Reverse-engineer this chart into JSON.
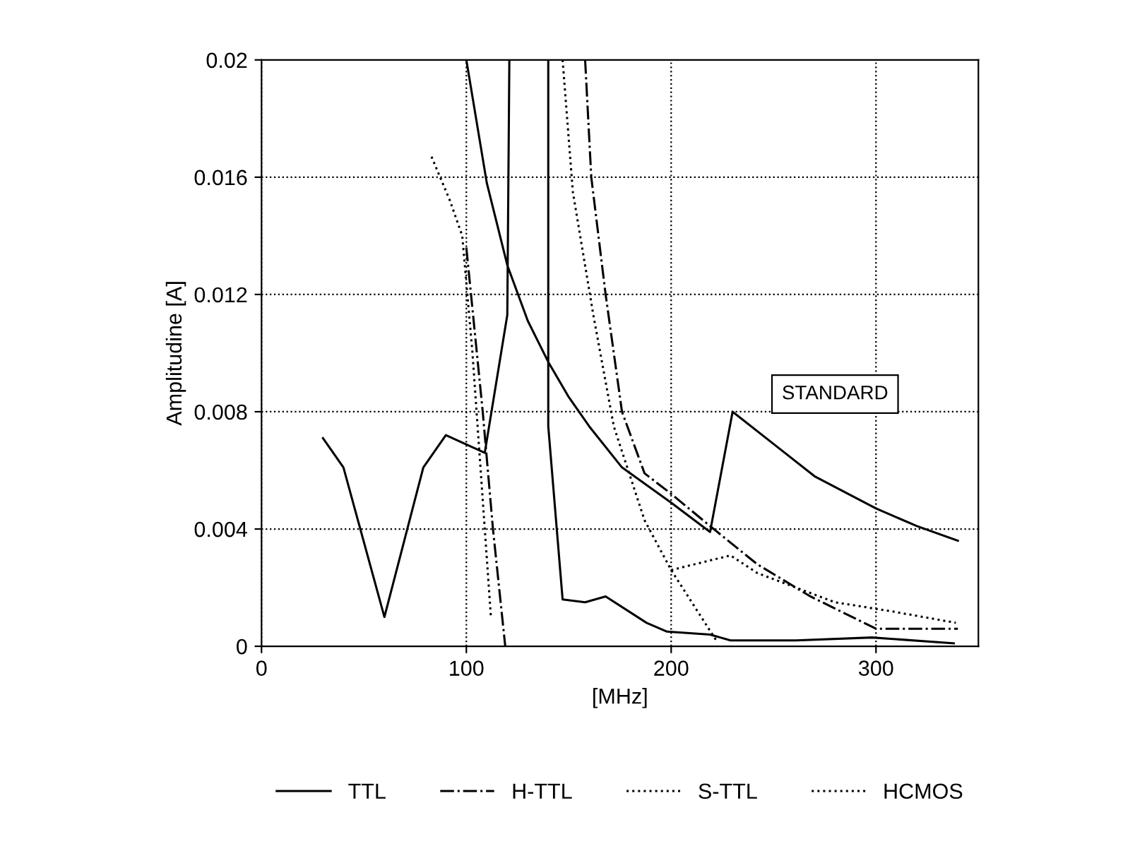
{
  "chart_data": {
    "type": "line",
    "xlabel": "[MHz]",
    "ylabel": "Amplitudine [A]",
    "xlim": [
      0,
      350
    ],
    "ylim": [
      0,
      0.02
    ],
    "xticks": [
      0,
      100,
      200,
      300
    ],
    "yticks": [
      0,
      0.004,
      0.008,
      0.012,
      0.016,
      0.02
    ],
    "grid": true,
    "legend": "bottom",
    "marker": "none",
    "annotations": [
      "STANDARD"
    ],
    "series": [
      {
        "name": "TTL",
        "color": "#000000",
        "line_style": "solid",
        "x": [
          30,
          40,
          60,
          79,
          90,
          109,
          120,
          121,
          null,
          100,
          110,
          120,
          130,
          140,
          150,
          160,
          176,
          200,
          219,
          230,
          250,
          270,
          300,
          320,
          340,
          null,
          140,
          140,
          147,
          158,
          168,
          188,
          198,
          219,
          229,
          247,
          261,
          298,
          338
        ],
        "values": [
          0.0071,
          0.0061,
          0.001,
          0.0061,
          0.0072,
          0.0066,
          0.0113,
          0.02,
          null,
          0.02,
          0.0158,
          0.013,
          0.0111,
          0.0097,
          0.0085,
          0.0075,
          0.0061,
          0.0049,
          0.0039,
          0.008,
          0.0069,
          0.0058,
          0.0047,
          0.0041,
          0.0036,
          null,
          0.02,
          0.0075,
          0.0016,
          0.0015,
          0.0017,
          0.0008,
          0.0005,
          0.0004,
          0.0002,
          0.0002,
          0.0002,
          0.0003,
          0.0001
        ]
      },
      {
        "name": "H-TTL",
        "color": "#000000",
        "line_style": "dashed",
        "x": [
          100,
          108,
          113,
          119,
          null,
          158,
          161,
          168,
          176,
          187,
          200,
          219,
          242,
          268,
          300,
          340
        ],
        "values": [
          0.0136,
          0.008,
          0.004,
          0.0,
          null,
          0.02,
          0.016,
          0.012,
          0.008,
          0.0059,
          0.0052,
          0.0041,
          0.0028,
          0.0017,
          0.0006,
          0.0006
        ]
      },
      {
        "name": "S-TTL",
        "color": "#000000",
        "line_style": "dotted",
        "x": [
          83,
          92,
          98,
          103,
          108,
          112,
          null,
          147,
          152,
          162,
          172,
          187,
          200,
          222
        ],
        "values": [
          0.0167,
          0.0152,
          0.014,
          0.01,
          0.005,
          0.001,
          null,
          0.02,
          0.0155,
          0.0113,
          0.0075,
          0.0043,
          0.0026,
          0.0002
        ]
      },
      {
        "name": "HCMOS",
        "color": "#000000",
        "line_style": "dotted",
        "x": [
          200,
          229,
          242,
          280,
          307,
          339
        ],
        "values": [
          0.0026,
          0.0031,
          0.0025,
          0.0015,
          0.0012,
          0.0008
        ]
      }
    ]
  }
}
